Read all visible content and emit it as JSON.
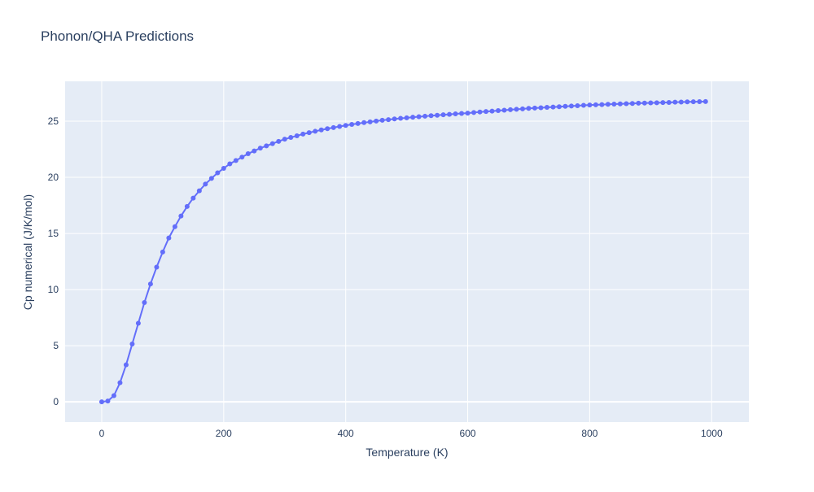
{
  "chart_data": {
    "type": "line",
    "title": "Phonon/QHA Predictions",
    "x_label": "Temperature (K)",
    "y_label": "Cp numerical (J/K/mol)",
    "x": [
      0,
      10,
      20,
      30,
      40,
      50,
      60,
      70,
      80,
      90,
      100,
      110,
      120,
      130,
      140,
      150,
      160,
      170,
      180,
      190,
      200,
      210,
      220,
      230,
      240,
      250,
      260,
      270,
      280,
      290,
      300,
      310,
      320,
      330,
      340,
      350,
      360,
      370,
      380,
      390,
      400,
      410,
      420,
      430,
      440,
      450,
      460,
      470,
      480,
      490,
      500,
      510,
      520,
      530,
      540,
      550,
      560,
      570,
      580,
      590,
      600,
      610,
      620,
      630,
      640,
      650,
      660,
      670,
      680,
      690,
      700,
      710,
      720,
      730,
      740,
      750,
      760,
      770,
      780,
      790,
      800,
      810,
      820,
      830,
      840,
      850,
      860,
      870,
      880,
      890,
      900,
      910,
      920,
      930,
      940,
      950,
      960,
      970,
      980,
      990
    ],
    "series": [
      {
        "color": "#636efa",
        "values": [
          0,
          0.07,
          0.55,
          1.7,
          3.3,
          5.15,
          7.0,
          8.85,
          10.5,
          12.0,
          13.35,
          14.6,
          15.6,
          16.55,
          17.4,
          18.15,
          18.8,
          19.4,
          19.9,
          20.4,
          20.8,
          21.2,
          21.5,
          21.8,
          22.1,
          22.35,
          22.6,
          22.8,
          23.0,
          23.2,
          23.4,
          23.55,
          23.7,
          23.85,
          23.98,
          24.1,
          24.22,
          24.33,
          24.43,
          24.53,
          24.62,
          24.71,
          24.79,
          24.87,
          24.94,
          25.01,
          25.08,
          25.14,
          25.2,
          25.25,
          25.3,
          25.35,
          25.4,
          25.44,
          25.49,
          25.53,
          25.57,
          25.61,
          25.65,
          25.69,
          25.72,
          25.77,
          25.82,
          25.86,
          25.9,
          25.94,
          25.98,
          26.02,
          26.06,
          26.1,
          26.14,
          26.17,
          26.2,
          26.23,
          26.26,
          26.29,
          26.32,
          26.35,
          26.38,
          26.41,
          26.44,
          26.46,
          26.48,
          26.5,
          26.52,
          26.54,
          26.56,
          26.58,
          26.6,
          26.61,
          26.63,
          26.64,
          26.66,
          26.67,
          26.69,
          26.7,
          26.72,
          26.73,
          26.74,
          26.75
        ]
      }
    ],
    "xlim": [
      -60,
      1061
    ],
    "ylim": [
      -1.8,
      28.55
    ],
    "xticks": [
      0,
      200,
      400,
      600,
      800,
      1000
    ],
    "yticks": [
      0,
      5,
      10,
      15,
      20,
      25
    ],
    "grid": true
  }
}
